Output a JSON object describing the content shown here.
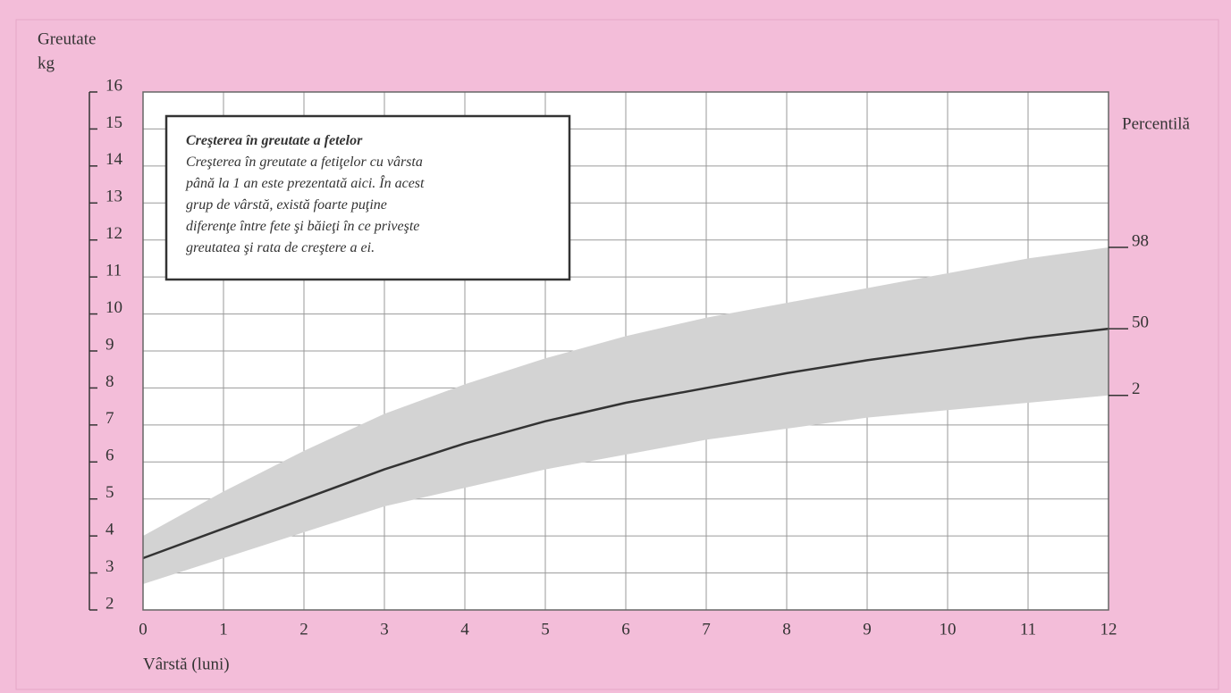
{
  "chart_data": {
    "type": "percentile-band",
    "ylabel": [
      "Greutate",
      "kg"
    ],
    "xlabel": "Vârstă (luni)",
    "y2label": "Percentilă",
    "x": [
      0,
      1,
      2,
      3,
      4,
      5,
      6,
      7,
      8,
      9,
      10,
      11,
      12
    ],
    "xlim": [
      0,
      12
    ],
    "xticks": [
      0,
      1,
      2,
      3,
      4,
      5,
      6,
      7,
      8,
      9,
      10,
      11,
      12
    ],
    "ylim": [
      2,
      16
    ],
    "yticks": [
      2,
      3,
      4,
      5,
      6,
      7,
      8,
      9,
      10,
      11,
      12,
      13,
      14,
      15,
      16
    ],
    "grid": true,
    "band_color": "#d3d3d3",
    "series": [
      {
        "name": "98",
        "color": "#d3d3d3",
        "values": [
          4.0,
          5.2,
          6.3,
          7.3,
          8.1,
          8.8,
          9.4,
          9.9,
          10.3,
          10.7,
          11.1,
          11.5,
          11.8
        ]
      },
      {
        "name": "50",
        "color": "#333333",
        "values": [
          3.4,
          4.2,
          5.0,
          5.8,
          6.5,
          7.1,
          7.6,
          8.0,
          8.4,
          8.75,
          9.05,
          9.35,
          9.6
        ]
      },
      {
        "name": "2",
        "color": "#d3d3d3",
        "values": [
          2.7,
          3.4,
          4.1,
          4.8,
          5.3,
          5.8,
          6.2,
          6.6,
          6.9,
          7.2,
          7.4,
          7.6,
          7.8
        ]
      }
    ],
    "annotation": {
      "title": "Creşterea în greutate a fetelor",
      "lines": [
        "Creşterea în greutate a fetiţelor cu vârsta",
        "până la 1 an este prezentată aici. În acest",
        "grup de vârstă, există foarte puţine",
        "diferenţe între fete şi băieţi în ce priveşte",
        "greutatea şi rata de creştere a ei."
      ]
    }
  }
}
